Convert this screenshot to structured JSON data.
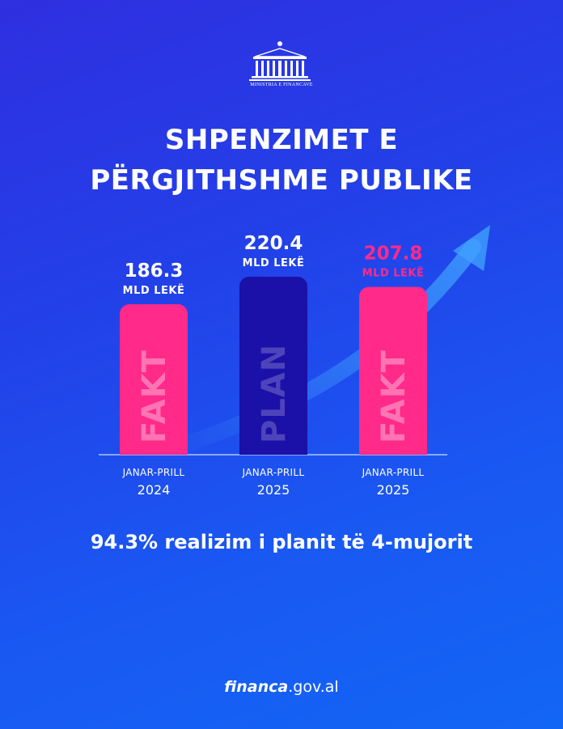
{
  "logo": {
    "caption": "MINISTRIA E FINANCAVE"
  },
  "title": {
    "line1": "SHPENZIMET E",
    "line2": "PËRGJITHSHME PUBLIKE"
  },
  "colors": {
    "fakt": "#ff2a8a",
    "plan": "#1b10a8",
    "highlight": "#ff2a8a",
    "text": "#ffffff"
  },
  "chart_data": {
    "type": "bar",
    "categories": [
      {
        "period": "JANAR-PRILL",
        "year": "2024"
      },
      {
        "period": "JANAR-PRILL",
        "year": "2025"
      },
      {
        "period": "JANAR-PRILL",
        "year": "2025"
      }
    ],
    "values": [
      186.3,
      220.4,
      207.8
    ],
    "value_labels": [
      "186.3",
      "220.4",
      "207.8"
    ],
    "unit": "MLD LEKË",
    "bar_labels": [
      "FAKT",
      "PLAN",
      "FAKT"
    ],
    "bar_colors": [
      "#ff2a8a",
      "#1b10a8",
      "#ff2a8a"
    ],
    "label_colors": [
      "#ffffff",
      "#ffffff",
      "#ff2a8a"
    ],
    "ylim": [
      0,
      220.4
    ],
    "trend_arrow": true,
    "grid": false
  },
  "note": {
    "text": "94.3% realizim i planit të 4-mujorit"
  },
  "footer": {
    "brand": "financa",
    "domain": ".gov.al"
  }
}
